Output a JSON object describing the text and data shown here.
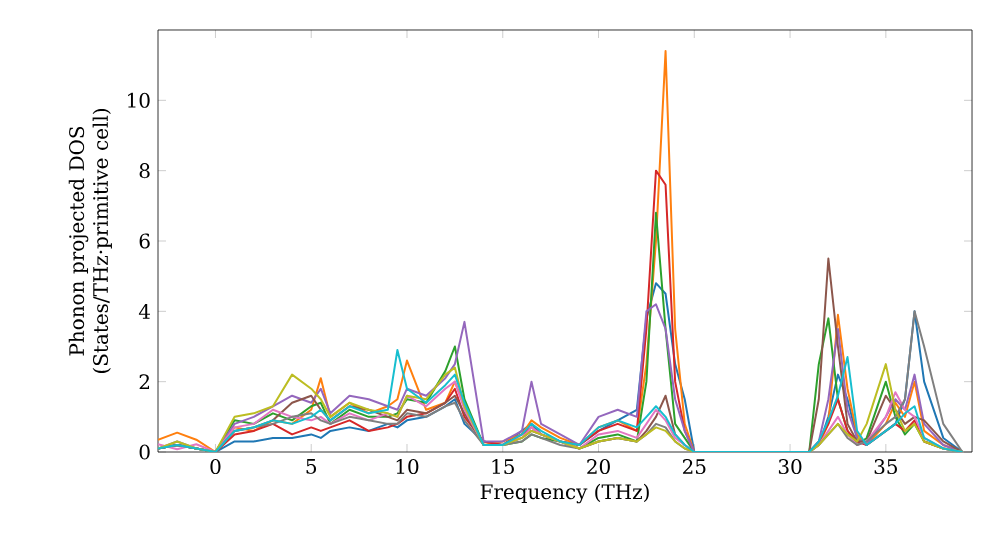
{
  "chart_data": {
    "type": "line",
    "xlabel": "Frequency (THz)",
    "ylabel": "Phonon projected DOS (States/THz·primitive cell)",
    "xlim": [
      -3,
      39.5
    ],
    "ylim": [
      0,
      12
    ],
    "xticks": [
      0,
      5,
      10,
      15,
      20,
      25,
      30,
      35
    ],
    "yticks": [
      0,
      2,
      4,
      6,
      8,
      10
    ],
    "grid": false,
    "x": [
      -3,
      -2,
      -1,
      0,
      1,
      2,
      3,
      4,
      5,
      5.5,
      6,
      7,
      8,
      9,
      9.5,
      10,
      11,
      12,
      12.5,
      13,
      14,
      15,
      16,
      16.5,
      17,
      18,
      19,
      20,
      21,
      22,
      22.5,
      23,
      23.5,
      24,
      24.5,
      25,
      28,
      31,
      31.5,
      32,
      32.5,
      33,
      33.5,
      34,
      35,
      35.5,
      36,
      36.5,
      37,
      38,
      39
    ],
    "series": [
      {
        "color": "#1f77b4",
        "values": [
          0.1,
          0.2,
          0.1,
          0,
          0.3,
          0.3,
          0.4,
          0.4,
          0.5,
          0.4,
          0.6,
          0.7,
          0.6,
          0.8,
          0.7,
          0.9,
          1.0,
          1.3,
          1.5,
          0.8,
          0.3,
          0.2,
          0.6,
          0.8,
          0.5,
          0.3,
          0.2,
          0.6,
          0.9,
          1.2,
          3.8,
          4.8,
          4.5,
          2.5,
          1.5,
          0,
          0,
          0,
          0.2,
          1.0,
          2.2,
          1.5,
          0.4,
          0.2,
          0.6,
          0.8,
          1.5,
          4.0,
          2.0,
          0.4,
          0
        ]
      },
      {
        "color": "#ff7f0e",
        "values": [
          0.35,
          0.55,
          0.35,
          0,
          0.7,
          0.6,
          0.9,
          0.8,
          1.2,
          2.1,
          1.0,
          1.4,
          1.1,
          1.3,
          1.5,
          2.6,
          1.2,
          1.4,
          2.0,
          1.3,
          0.2,
          0.3,
          0.5,
          0.9,
          0.7,
          0.4,
          0.2,
          0.7,
          0.9,
          0.6,
          2.5,
          6.0,
          11.4,
          3.5,
          0.8,
          0,
          0,
          0,
          0.2,
          0.8,
          3.9,
          1.8,
          0.5,
          0.2,
          0.8,
          1.4,
          1.0,
          2.0,
          0.6,
          0.2,
          0
        ]
      },
      {
        "color": "#2ca02c",
        "values": [
          0.1,
          0.2,
          0.1,
          0,
          0.9,
          0.8,
          1.1,
          0.9,
          1.3,
          1.4,
          0.8,
          1.2,
          1.0,
          1.0,
          1.1,
          1.5,
          1.4,
          2.3,
          3.0,
          1.5,
          0.2,
          0.2,
          0.3,
          0.5,
          0.4,
          0.3,
          0.1,
          0.4,
          0.5,
          0.3,
          2.0,
          6.8,
          3.5,
          0.8,
          0.4,
          0,
          0,
          0,
          2.5,
          3.8,
          1.5,
          0.6,
          0.2,
          0.4,
          2.0,
          1.0,
          0.5,
          0.8,
          0.3,
          0.1,
          0
        ]
      },
      {
        "color": "#d62728",
        "values": [
          0.1,
          0.2,
          0.1,
          0,
          0.5,
          0.6,
          0.8,
          0.5,
          0.7,
          0.6,
          0.7,
          0.9,
          0.6,
          0.7,
          0.8,
          1.0,
          1.1,
          1.4,
          1.8,
          1.0,
          0.3,
          0.2,
          0.5,
          0.7,
          0.5,
          0.3,
          0.2,
          0.6,
          0.8,
          0.6,
          3.5,
          8.0,
          7.6,
          2.0,
          0.6,
          0,
          0,
          0,
          0.3,
          0.8,
          1.5,
          0.6,
          0.3,
          0.2,
          0.6,
          0.8,
          0.6,
          0.9,
          0.3,
          0.1,
          0
        ]
      },
      {
        "color": "#9467bd",
        "values": [
          0.1,
          0.3,
          0.1,
          0,
          0.8,
          1.0,
          1.3,
          1.6,
          1.4,
          1.8,
          1.1,
          1.6,
          1.5,
          1.3,
          1.2,
          1.8,
          1.6,
          2.1,
          2.5,
          3.7,
          0.3,
          0.3,
          0.6,
          2.0,
          0.8,
          0.5,
          0.2,
          1.0,
          1.2,
          1.0,
          4.0,
          4.2,
          3.5,
          1.5,
          0.6,
          0,
          0,
          0,
          0.3,
          1.5,
          3.5,
          1.2,
          0.4,
          0.2,
          1.0,
          1.5,
          1.2,
          2.2,
          0.8,
          0.2,
          0
        ]
      },
      {
        "color": "#8c564b",
        "values": [
          0.1,
          0.2,
          0.1,
          0,
          0.6,
          0.7,
          0.9,
          1.4,
          1.6,
          1.2,
          0.9,
          1.3,
          1.2,
          1.0,
          0.9,
          1.2,
          1.1,
          1.4,
          1.6,
          1.1,
          0.2,
          0.2,
          0.4,
          0.6,
          0.5,
          0.3,
          0.1,
          0.3,
          0.4,
          0.3,
          0.6,
          1.0,
          1.6,
          0.5,
          0.2,
          0,
          0,
          0,
          1.5,
          5.5,
          3.0,
          0.8,
          0.3,
          0.3,
          1.6,
          1.2,
          0.8,
          1.0,
          0.9,
          0.3,
          0
        ]
      },
      {
        "color": "#e377c2",
        "values": [
          0.22,
          0.08,
          0.22,
          0,
          0.7,
          0.8,
          1.2,
          1.0,
          0.9,
          1.0,
          0.8,
          1.1,
          0.9,
          1.1,
          1.0,
          1.6,
          1.3,
          1.8,
          2.0,
          1.2,
          0.2,
          0.2,
          0.4,
          0.7,
          0.5,
          0.3,
          0.1,
          0.5,
          0.6,
          0.4,
          0.8,
          1.2,
          0.9,
          0.4,
          0.2,
          0,
          0,
          0,
          0.2,
          0.6,
          1.0,
          0.5,
          0.2,
          0.3,
          1.0,
          1.7,
          1.2,
          1.0,
          0.4,
          0.1,
          0
        ]
      },
      {
        "color": "#7f7f7f",
        "values": [
          0.1,
          0.2,
          0.1,
          0,
          0.6,
          0.7,
          0.8,
          1.0,
          1.1,
          0.9,
          0.8,
          1.0,
          0.9,
          0.8,
          0.8,
          1.1,
          1.0,
          1.3,
          1.4,
          0.9,
          0.2,
          0.2,
          0.3,
          0.5,
          0.4,
          0.2,
          0.1,
          0.3,
          0.4,
          0.3,
          0.5,
          0.8,
          0.7,
          0.3,
          0.1,
          0,
          0,
          0,
          0.2,
          0.5,
          0.8,
          0.4,
          0.2,
          0.3,
          0.8,
          1.0,
          1.5,
          4.0,
          3.0,
          0.8,
          0
        ]
      },
      {
        "color": "#bcbd22",
        "values": [
          0.1,
          0.3,
          0.1,
          0,
          1.0,
          1.1,
          1.3,
          2.2,
          1.8,
          1.5,
          1.0,
          1.4,
          1.2,
          1.1,
          1.0,
          1.6,
          1.5,
          2.2,
          2.4,
          1.3,
          0.2,
          0.2,
          0.4,
          0.6,
          0.5,
          0.3,
          0.1,
          0.3,
          0.4,
          0.3,
          0.5,
          0.7,
          0.6,
          0.3,
          0.1,
          0,
          0,
          0,
          0.2,
          0.5,
          0.8,
          0.5,
          0.3,
          0.8,
          2.5,
          1.2,
          0.6,
          0.8,
          0.3,
          0.1,
          0
        ]
      },
      {
        "color": "#17becf",
        "values": [
          0.1,
          0.2,
          0.1,
          0,
          0.6,
          0.7,
          0.9,
          0.8,
          1.0,
          1.2,
          0.9,
          1.3,
          1.1,
          1.2,
          2.9,
          1.8,
          1.4,
          1.9,
          2.2,
          1.4,
          0.2,
          0.2,
          0.5,
          0.8,
          0.6,
          0.3,
          0.2,
          0.7,
          0.9,
          0.7,
          1.0,
          1.3,
          1.0,
          0.5,
          0.2,
          0,
          0,
          0,
          0.3,
          0.9,
          1.6,
          2.7,
          0.6,
          0.2,
          0.6,
          0.8,
          1.1,
          1.3,
          0.4,
          0.1,
          0
        ]
      }
    ]
  }
}
